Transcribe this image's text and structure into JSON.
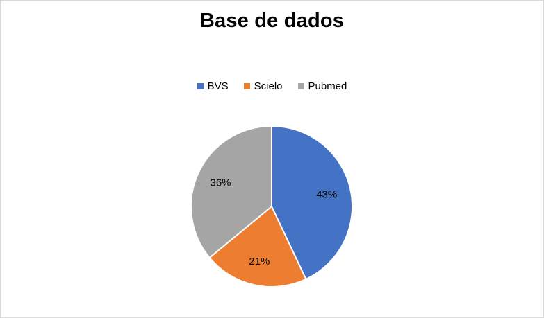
{
  "chart_data": {
    "type": "pie",
    "title": "Base de dados",
    "categories": [
      "BVS",
      "Scielo",
      "Pubmed"
    ],
    "values": [
      43,
      21,
      36
    ],
    "labels": [
      "43%",
      "21%",
      "36%"
    ],
    "colors": [
      "#4472c4",
      "#ed7d31",
      "#a5a5a5"
    ],
    "legend_position": "top",
    "start_angle_deg": 0,
    "direction": "clockwise"
  }
}
